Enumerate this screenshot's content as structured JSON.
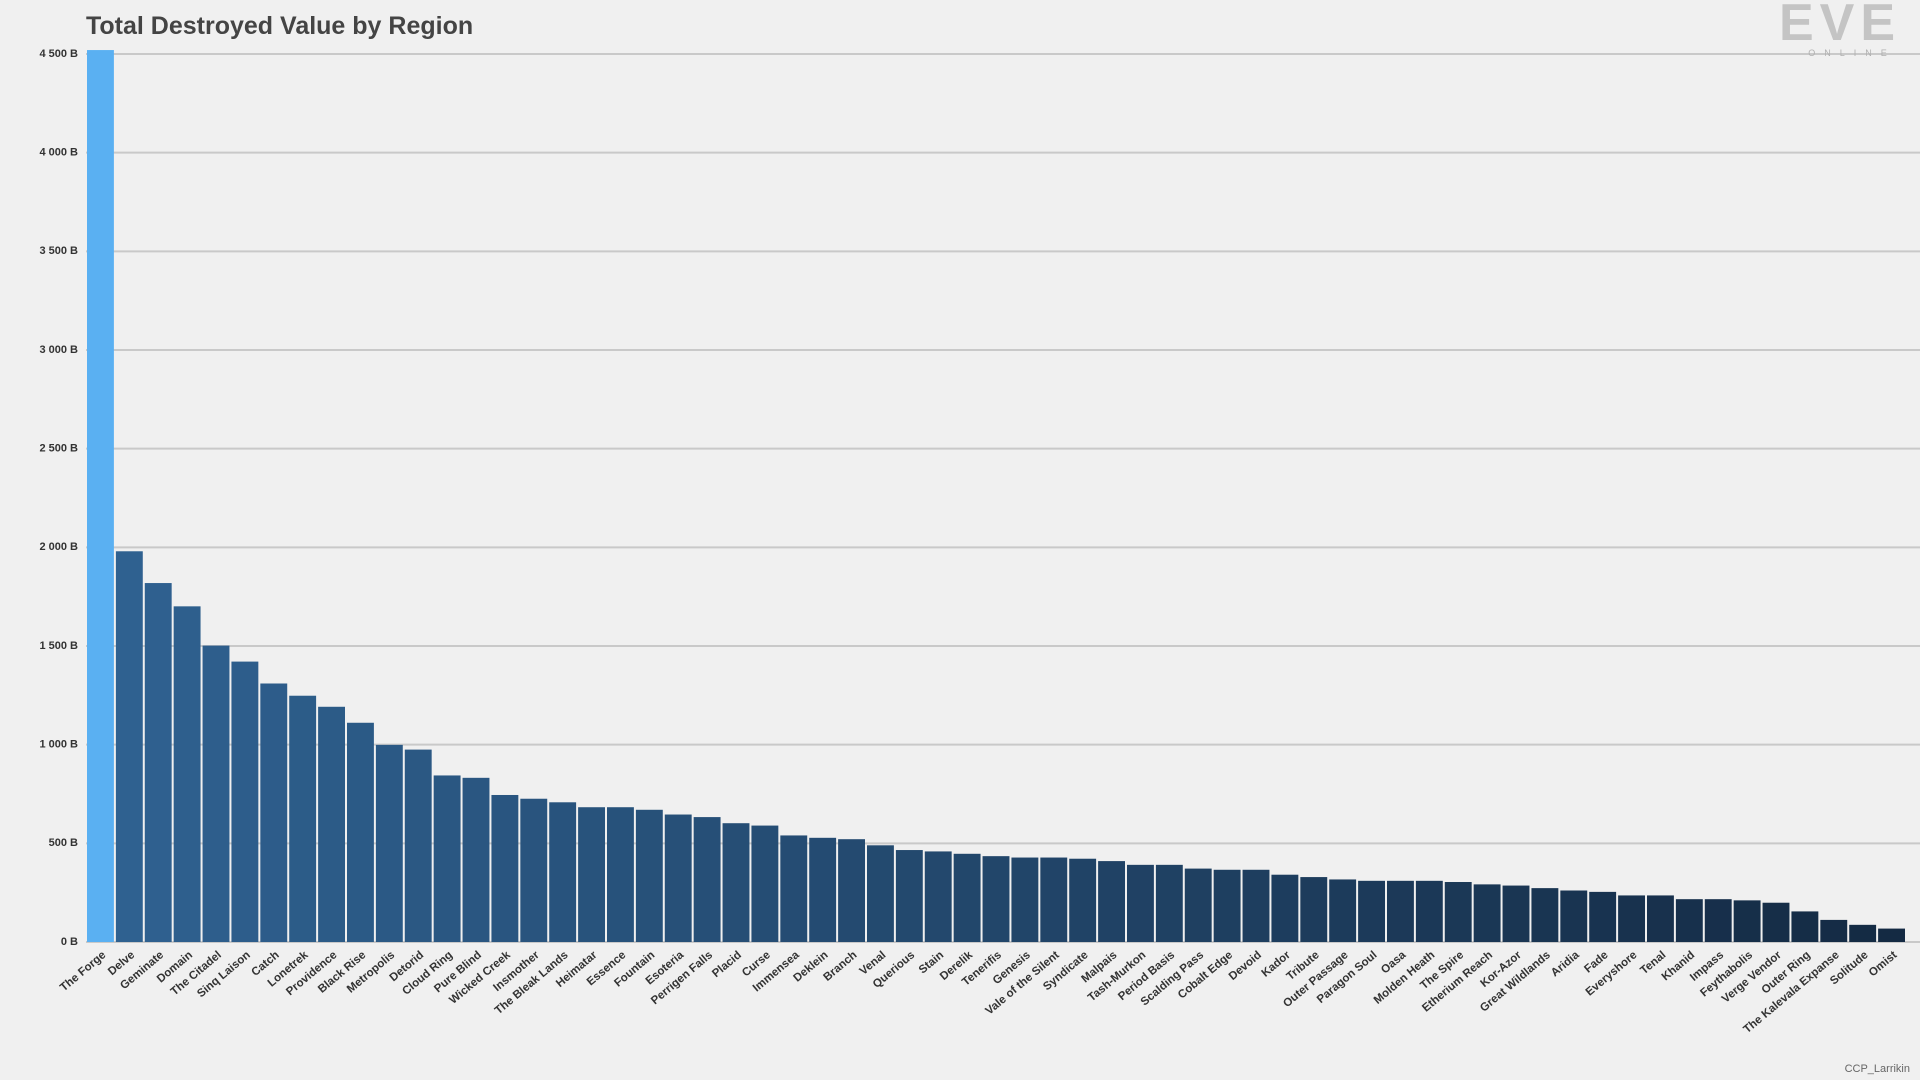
{
  "chart_data": {
    "type": "bar",
    "title": "Total Destroyed Value by Region",
    "watermark": {
      "logo": "EVE",
      "logo_sub": "ONLINE",
      "credit": "CCP_Larrikin"
    },
    "categories": [
      "The Forge",
      "Delve",
      "Geminate",
      "Domain",
      "The Citadel",
      "Sinq Laison",
      "Catch",
      "Lonetrek",
      "Providence",
      "Black Rise",
      "Metropolis",
      "Detorid",
      "Cloud Ring",
      "Pure Blind",
      "Wicked Creek",
      "Insmother",
      "The Bleak Lands",
      "Heimatar",
      "Essence",
      "Fountain",
      "Esoteria",
      "Perrigen Falls",
      "Placid",
      "Curse",
      "Immensea",
      "Deklein",
      "Branch",
      "Venal",
      "Querious",
      "Stain",
      "Derelik",
      "Tenerifis",
      "Genesis",
      "Vale of the Silent",
      "Syndicate",
      "Malpais",
      "Tash-Murkon",
      "Period Basis",
      "Scalding Pass",
      "Cobalt Edge",
      "Devoid",
      "Kador",
      "Tribute",
      "Outer Passage",
      "Paragon Soul",
      "Oasa",
      "Molden Heath",
      "The Spire",
      "Etherium Reach",
      "Kor-Azor",
      "Great Wildlands",
      "Aridia",
      "Fade",
      "Everyshore",
      "Tenal",
      "Khanid",
      "Impass",
      "Feythabolis",
      "Verge Vendor",
      "Outer Ring",
      "The Kalevala Expanse",
      "Solitude",
      "Omist"
    ],
    "values": [
      4520,
      1980,
      1819,
      1701,
      1502,
      1421,
      1310,
      1248,
      1192,
      1111,
      999,
      975,
      844,
      832,
      745,
      726,
      708,
      683,
      683,
      670,
      646,
      633,
      602,
      590,
      540,
      528,
      521,
      490,
      466,
      459,
      447,
      435,
      428,
      428,
      422,
      410,
      391,
      391,
      372,
      366,
      366,
      341,
      329,
      317,
      310,
      310,
      310,
      304,
      292,
      286,
      273,
      261,
      254,
      236,
      236,
      217,
      217,
      211,
      199,
      155,
      112,
      87,
      68
    ],
    "highlight_color": "#5ab0f2",
    "color_gradient": [
      "#2f6190",
      "#142a43"
    ],
    "ylim": [
      0,
      4500
    ],
    "yticks": [
      {
        "value": 0,
        "label": "0 B"
      },
      {
        "value": 500,
        "label": "500 B"
      },
      {
        "value": 1000,
        "label": "1 000 B"
      },
      {
        "value": 1500,
        "label": "1 500 B"
      },
      {
        "value": 2000,
        "label": "2 000 B"
      },
      {
        "value": 2500,
        "label": "2 500 B"
      },
      {
        "value": 3000,
        "label": "3 000 B"
      },
      {
        "value": 3500,
        "label": "3 500 B"
      },
      {
        "value": 4000,
        "label": "4 000 B"
      },
      {
        "value": 4500,
        "label": "4 500 B"
      }
    ],
    "grid": true
  }
}
